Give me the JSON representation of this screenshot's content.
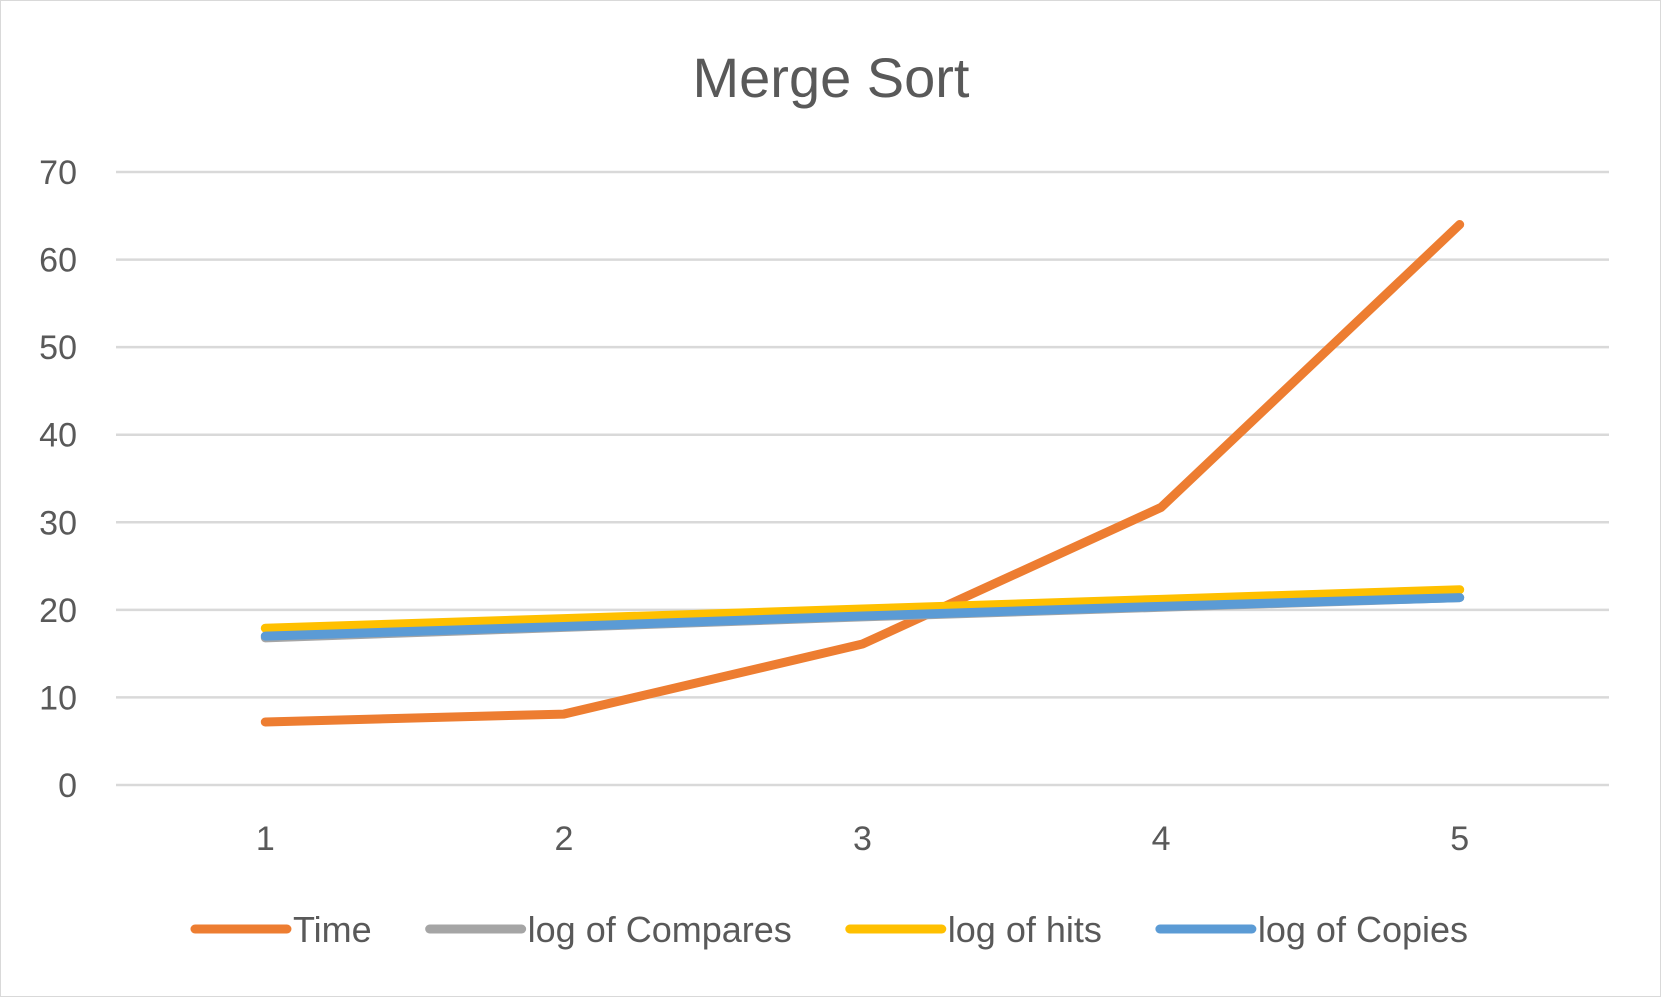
{
  "chart_data": {
    "type": "line",
    "title": "Merge Sort",
    "xlabel": "",
    "ylabel": "",
    "categories": [
      "1",
      "2",
      "3",
      "4",
      "5"
    ],
    "ylim": [
      0,
      70
    ],
    "y_ticks": [
      "0",
      "10",
      "20",
      "30",
      "40",
      "50",
      "60",
      "70"
    ],
    "grid": true,
    "legend_position": "bottom",
    "series": [
      {
        "name": "Time",
        "color": "#ED7D31",
        "values": [
          7.2,
          8.1,
          16.1,
          31.7,
          64.0
        ]
      },
      {
        "name": "log of Compares",
        "color": "#A5A5A5",
        "values": [
          16.8,
          18.0,
          19.2,
          20.3,
          21.4
        ]
      },
      {
        "name": "log of hits",
        "color": "#FFC000",
        "values": [
          17.9,
          19.0,
          20.1,
          21.2,
          22.3
        ]
      },
      {
        "name": "log of Copies",
        "color": "#5B9BD5",
        "values": [
          17.0,
          18.1,
          19.3,
          20.4,
          21.4
        ]
      }
    ]
  }
}
